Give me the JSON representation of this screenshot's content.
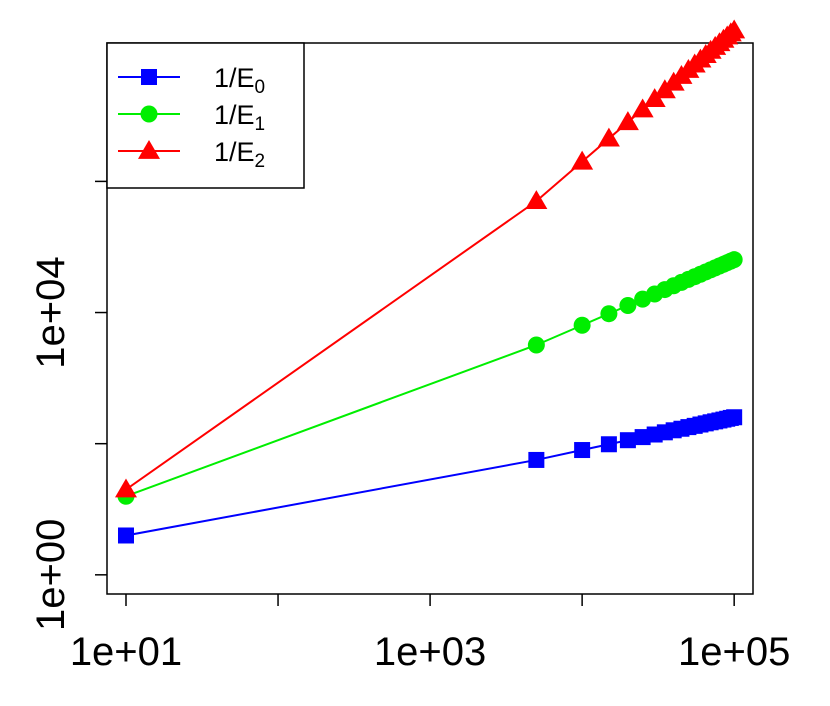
{
  "chart_data": {
    "type": "line",
    "title": "",
    "xlabel": "",
    "ylabel": "",
    "x_scale": "log",
    "y_scale": "log",
    "xlim": [
      7.5,
      133000
    ],
    "ylim": [
      0.51,
      129000000
    ],
    "x_ticks": [
      10,
      100,
      1000,
      10000,
      100000
    ],
    "x_tick_labels": [
      "1e+01",
      "",
      "1e+03",
      "",
      "1e+05"
    ],
    "y_ticks": [
      1,
      100,
      10000,
      1000000
    ],
    "y_tick_labels": [
      "1e+00",
      "",
      "1e+04",
      ""
    ],
    "grid": false,
    "legend_position": "top-left",
    "x": [
      10,
      5000,
      10000,
      15000,
      20000,
      25000,
      30000,
      35000,
      40000,
      45000,
      50000,
      55000,
      60000,
      65000,
      70000,
      75000,
      80000,
      85000,
      90000,
      95000,
      100000
    ],
    "series": [
      {
        "name": "1/E0",
        "label_main": "1/E",
        "label_sub": "0",
        "color": "#0000ff",
        "marker": "square",
        "values": [
          3.98,
          56.5,
          80,
          98,
          113,
          126,
          138,
          149,
          160,
          169,
          179,
          187,
          196,
          204,
          212,
          219,
          226,
          233,
          240,
          247,
          253
        ]
      },
      {
        "name": "1/E1",
        "label_main": "1/E",
        "label_sub": "1",
        "color": "#00ee00",
        "marker": "circle",
        "values": [
          15.8,
          3200,
          6400,
          9600,
          12800,
          16000,
          19200,
          22400,
          25600,
          28800,
          32000,
          35200,
          38400,
          41600,
          44800,
          48000,
          51200,
          54400,
          57600,
          60800,
          64000
        ]
      },
      {
        "name": "1/E2",
        "label_main": "1/E",
        "label_sub": "2",
        "color": "#ff0000",
        "marker": "triangle",
        "values": [
          20,
          500000,
          2000000,
          4500000,
          8000000,
          12500000,
          18000000,
          24500000,
          32000000,
          40500000,
          50000000,
          60500000,
          72000000,
          84500000,
          98000000,
          112500000,
          128000000,
          144500000,
          162000000,
          180500000,
          200000000
        ]
      }
    ]
  }
}
